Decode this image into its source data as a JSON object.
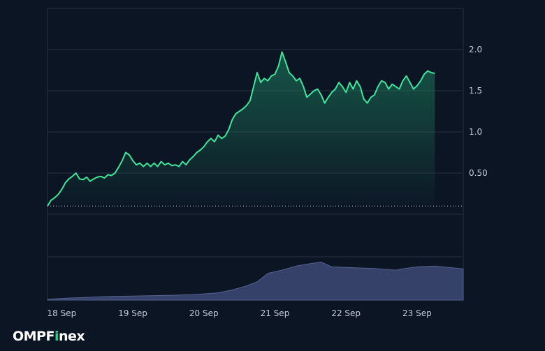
{
  "brand": {
    "prefix": "OMPF",
    "accent_letter": "i",
    "suffix": "nex",
    "accent_color": "#2fd08e"
  },
  "colors": {
    "background": "#0c1524",
    "grid": "#26313f",
    "price_line": "#3ee59a",
    "price_fill": "#1f8c66",
    "volume_fill": "#3d4975",
    "baseline": "#c8d0dc",
    "tick_text": "#c4ccd8"
  },
  "chart_data": {
    "type": "area",
    "title": "",
    "xlabel": "",
    "ylabel": "",
    "grid": true,
    "y_axis_side": "right",
    "ylim": [
      0,
      2.5
    ],
    "ylim_note": "",
    "yticks": [
      0.5,
      1.0,
      1.5,
      2.0
    ],
    "ytick_labels": [
      "0.50",
      "1.0",
      "1.5",
      "2.0"
    ],
    "baseline_value": 0.1,
    "x_ticks": [
      {
        "label": "18 Sep",
        "x": 18.2
      },
      {
        "label": "19 Sep",
        "x": 19.2
      },
      {
        "label": "20 Sep",
        "x": 20.2
      },
      {
        "label": "21 Sep",
        "x": 21.2
      },
      {
        "label": "22 Sep",
        "x": 22.2
      },
      {
        "label": "23 Sep",
        "x": 23.2
      }
    ],
    "xlim": [
      18.0,
      23.85
    ],
    "series": [
      {
        "type": "area",
        "points": [
          [
            18.0,
            0.1
          ],
          [
            18.05,
            0.17
          ],
          [
            18.1,
            0.2
          ],
          [
            18.15,
            0.24
          ],
          [
            18.2,
            0.3
          ],
          [
            18.25,
            0.38
          ],
          [
            18.3,
            0.43
          ],
          [
            18.35,
            0.46
          ],
          [
            18.4,
            0.5
          ],
          [
            18.45,
            0.43
          ],
          [
            18.5,
            0.42
          ],
          [
            18.55,
            0.45
          ],
          [
            18.6,
            0.4
          ],
          [
            18.65,
            0.43
          ],
          [
            18.7,
            0.45
          ],
          [
            18.75,
            0.46
          ],
          [
            18.8,
            0.44
          ],
          [
            18.85,
            0.48
          ],
          [
            18.9,
            0.47
          ],
          [
            18.95,
            0.5
          ],
          [
            19.0,
            0.57
          ],
          [
            19.05,
            0.65
          ],
          [
            19.1,
            0.75
          ],
          [
            19.15,
            0.72
          ],
          [
            19.2,
            0.65
          ],
          [
            19.25,
            0.6
          ],
          [
            19.3,
            0.62
          ],
          [
            19.35,
            0.58
          ],
          [
            19.4,
            0.62
          ],
          [
            19.45,
            0.58
          ],
          [
            19.5,
            0.62
          ],
          [
            19.55,
            0.58
          ],
          [
            19.6,
            0.64
          ],
          [
            19.65,
            0.6
          ],
          [
            19.7,
            0.62
          ],
          [
            19.75,
            0.59
          ],
          [
            19.8,
            0.6
          ],
          [
            19.85,
            0.58
          ],
          [
            19.9,
            0.64
          ],
          [
            19.95,
            0.6
          ],
          [
            20.0,
            0.66
          ],
          [
            20.05,
            0.7
          ],
          [
            20.1,
            0.75
          ],
          [
            20.15,
            0.78
          ],
          [
            20.2,
            0.82
          ],
          [
            20.25,
            0.88
          ],
          [
            20.3,
            0.92
          ],
          [
            20.35,
            0.88
          ],
          [
            20.4,
            0.96
          ],
          [
            20.45,
            0.92
          ],
          [
            20.5,
            0.95
          ],
          [
            20.55,
            1.03
          ],
          [
            20.6,
            1.15
          ],
          [
            20.65,
            1.22
          ],
          [
            20.7,
            1.25
          ],
          [
            20.75,
            1.28
          ],
          [
            20.8,
            1.32
          ],
          [
            20.85,
            1.38
          ],
          [
            20.9,
            1.55
          ],
          [
            20.95,
            1.72
          ],
          [
            21.0,
            1.6
          ],
          [
            21.05,
            1.65
          ],
          [
            21.1,
            1.62
          ],
          [
            21.15,
            1.68
          ],
          [
            21.2,
            1.7
          ],
          [
            21.25,
            1.8
          ],
          [
            21.3,
            1.97
          ],
          [
            21.35,
            1.85
          ],
          [
            21.4,
            1.72
          ],
          [
            21.45,
            1.68
          ],
          [
            21.5,
            1.62
          ],
          [
            21.55,
            1.65
          ],
          [
            21.6,
            1.55
          ],
          [
            21.65,
            1.42
          ],
          [
            21.7,
            1.46
          ],
          [
            21.75,
            1.5
          ],
          [
            21.8,
            1.52
          ],
          [
            21.85,
            1.45
          ],
          [
            21.9,
            1.35
          ],
          [
            21.95,
            1.42
          ],
          [
            22.0,
            1.48
          ],
          [
            22.05,
            1.52
          ],
          [
            22.1,
            1.6
          ],
          [
            22.15,
            1.55
          ],
          [
            22.2,
            1.48
          ],
          [
            22.25,
            1.6
          ],
          [
            22.3,
            1.52
          ],
          [
            22.35,
            1.62
          ],
          [
            22.4,
            1.55
          ],
          [
            22.45,
            1.4
          ],
          [
            22.5,
            1.35
          ],
          [
            22.55,
            1.42
          ],
          [
            22.6,
            1.45
          ],
          [
            22.65,
            1.55
          ],
          [
            22.7,
            1.62
          ],
          [
            22.75,
            1.6
          ],
          [
            22.8,
            1.52
          ],
          [
            22.85,
            1.58
          ],
          [
            22.9,
            1.55
          ],
          [
            22.95,
            1.52
          ],
          [
            23.0,
            1.62
          ],
          [
            23.05,
            1.68
          ],
          [
            23.1,
            1.6
          ],
          [
            23.15,
            1.52
          ],
          [
            23.2,
            1.56
          ],
          [
            23.25,
            1.62
          ],
          [
            23.3,
            1.7
          ],
          [
            23.35,
            1.74
          ],
          [
            23.4,
            1.72
          ],
          [
            23.45,
            1.71
          ]
        ]
      },
      {
        "type": "volume-area",
        "ylim": [
          0,
          1
        ],
        "points": [
          [
            18.0,
            0.02
          ],
          [
            18.3,
            0.05
          ],
          [
            18.6,
            0.07
          ],
          [
            18.9,
            0.09
          ],
          [
            19.2,
            0.1
          ],
          [
            19.5,
            0.11
          ],
          [
            19.8,
            0.12
          ],
          [
            20.1,
            0.14
          ],
          [
            20.4,
            0.18
          ],
          [
            20.6,
            0.25
          ],
          [
            20.8,
            0.35
          ],
          [
            20.95,
            0.45
          ],
          [
            21.1,
            0.66
          ],
          [
            21.3,
            0.74
          ],
          [
            21.5,
            0.84
          ],
          [
            21.7,
            0.9
          ],
          [
            21.85,
            0.94
          ],
          [
            22.0,
            0.82
          ],
          [
            22.3,
            0.8
          ],
          [
            22.6,
            0.78
          ],
          [
            22.9,
            0.74
          ],
          [
            23.0,
            0.77
          ],
          [
            23.2,
            0.82
          ],
          [
            23.45,
            0.84
          ],
          [
            23.85,
            0.77
          ]
        ]
      }
    ]
  }
}
